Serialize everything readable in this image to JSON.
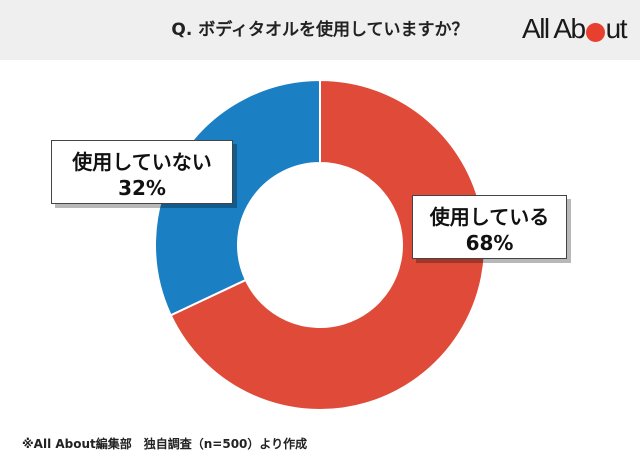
{
  "header": {
    "question": "Q. ボディタオルを使用していますか？",
    "logo": {
      "text_pre": "All Ab",
      "text_post": "ut",
      "accent_color": "#e8402f"
    }
  },
  "chart_data": {
    "type": "pie",
    "style": "donut",
    "title": "Q. ボディタオルを使用していますか？",
    "slices": [
      {
        "label": "使用している",
        "value": 68,
        "value_label": "68%",
        "color": "#e04b39"
      },
      {
        "label": "使用していない",
        "value": 32,
        "value_label": "32%",
        "color": "#1b7fc4"
      }
    ]
  },
  "footnote": "※All About編集部　独自調査（n=500）より作成"
}
